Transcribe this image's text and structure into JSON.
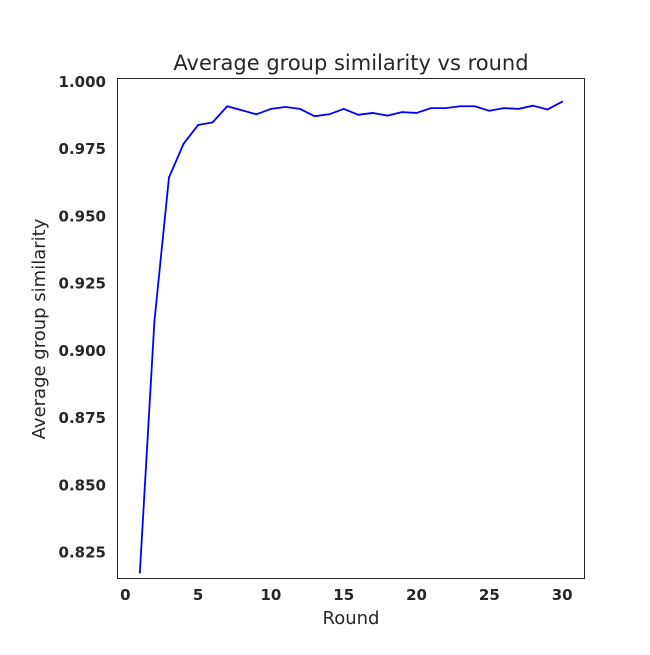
{
  "chart_data": {
    "type": "line",
    "title": "Average group similarity vs round",
    "xlabel": "Round",
    "ylabel": "Average group similarity",
    "xlim": [
      -0.5,
      31.5
    ],
    "ylim": [
      0.8155,
      1.0015
    ],
    "xticks": [
      0,
      5,
      10,
      15,
      20,
      25,
      30
    ],
    "xtick_labels": [
      "0",
      "5",
      "10",
      "15",
      "20",
      "25",
      "30"
    ],
    "yticks": [
      0.825,
      0.85,
      0.875,
      0.9,
      0.925,
      0.95,
      0.975,
      1.0
    ],
    "ytick_labels": [
      "0.825",
      "0.850",
      "0.875",
      "0.900",
      "0.925",
      "0.950",
      "0.975",
      "1.000"
    ],
    "grid": false,
    "legend": "none",
    "series": [
      {
        "color": "#0000ff",
        "x": [
          1,
          2,
          3,
          4,
          5,
          6,
          7,
          8,
          9,
          10,
          11,
          12,
          13,
          14,
          15,
          16,
          17,
          18,
          19,
          20,
          21,
          22,
          23,
          24,
          25,
          26,
          27,
          28,
          29,
          30
        ],
        "y": [
          0.8175,
          0.911,
          0.9645,
          0.977,
          0.984,
          0.985,
          0.991,
          0.9895,
          0.988,
          0.99,
          0.9907,
          0.99,
          0.9873,
          0.988,
          0.99,
          0.9878,
          0.9885,
          0.9875,
          0.9888,
          0.9885,
          0.9903,
          0.9903,
          0.991,
          0.991,
          0.9893,
          0.9903,
          0.99,
          0.9912,
          0.9898,
          0.9927
        ]
      }
    ]
  }
}
